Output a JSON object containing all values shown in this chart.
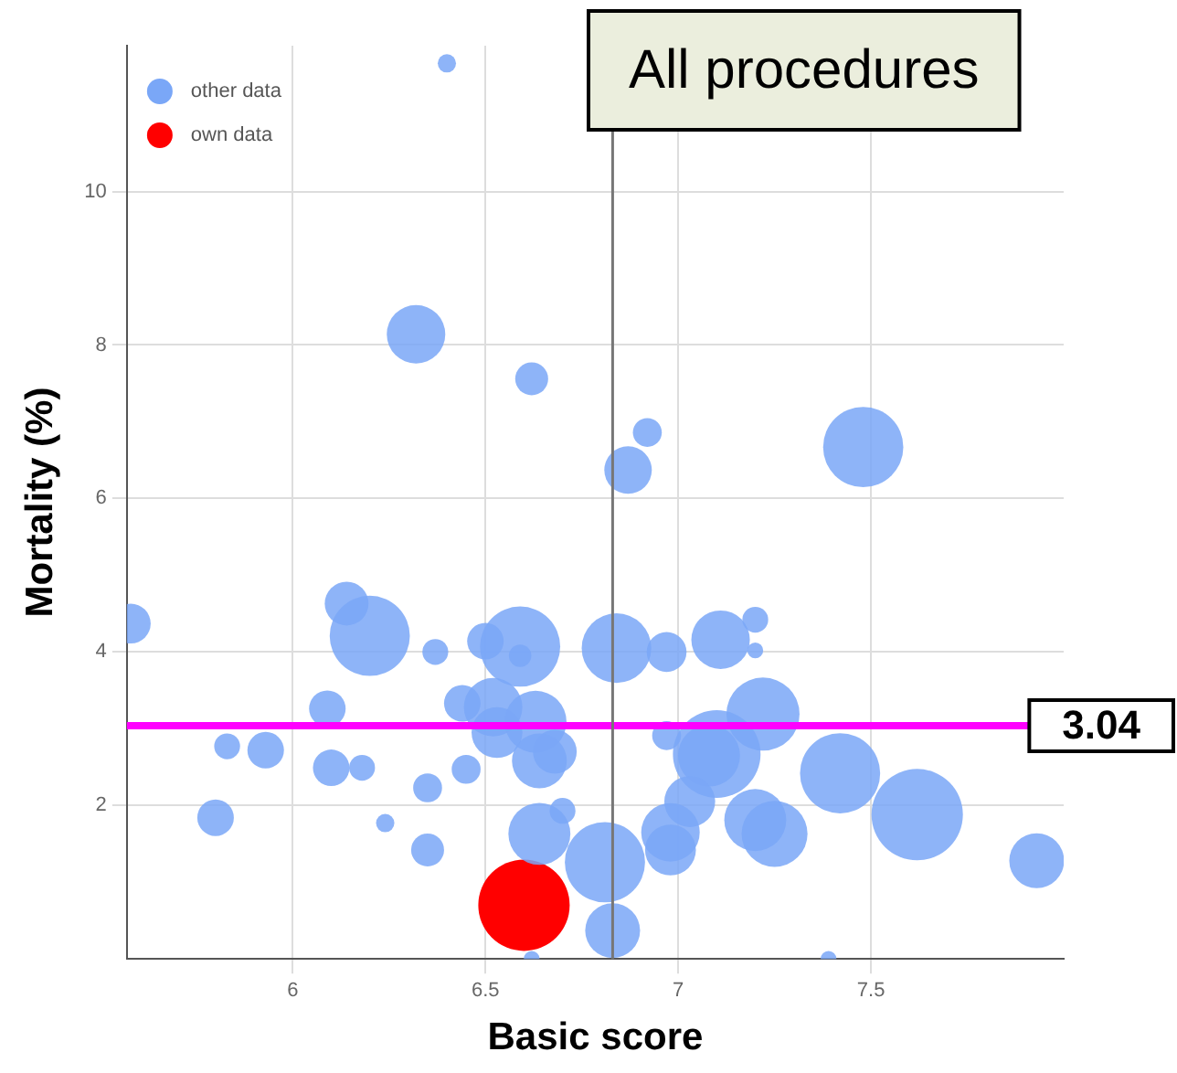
{
  "chart_data": {
    "type": "bubble",
    "title": "All procedures",
    "xlabel": "Basic score",
    "ylabel": "Mortality (%)",
    "xlim": [
      5.57,
      8.0
    ],
    "xticks": [
      6,
      6.5,
      7,
      7.5
    ],
    "ylim": [
      0,
      11.9
    ],
    "yticks": [
      2,
      4,
      6,
      8,
      10
    ],
    "grid": true,
    "legend": "top left",
    "marker": "circle",
    "ref_lines": [
      {
        "axis": "y",
        "value": 3.04,
        "label": "3.04",
        "color": "#ff00ff"
      },
      {
        "axis": "x",
        "value": 6.83,
        "color": "#777777"
      }
    ],
    "series": [
      {
        "name": "other data",
        "color": "#7aa7f7",
        "x": [
          6.4,
          6.32,
          6.62,
          6.92,
          6.87,
          7.48,
          5.58,
          6.14,
          6.2,
          6.37,
          6.5,
          6.59,
          6.59,
          6.84,
          6.97,
          7.11,
          7.2,
          7.2,
          6.09,
          5.83,
          5.93,
          6.1,
          6.18,
          6.44,
          6.52,
          6.53,
          6.63,
          6.68,
          6.64,
          6.45,
          6.35,
          5.8,
          6.24,
          6.35,
          6.7,
          6.64,
          6.62,
          7.22,
          6.97,
          7.1,
          7.08,
          7.42,
          7.62,
          7.03,
          7.2,
          7.25,
          6.98,
          6.98,
          6.81,
          6.83,
          7.39,
          7.93
        ],
        "values": [
          11.67,
          8.14,
          7.56,
          6.86,
          6.37,
          6.67,
          4.37,
          4.63,
          4.21,
          4.0,
          4.14,
          4.07,
          3.95,
          4.05,
          4.0,
          4.16,
          4.42,
          4.02,
          3.26,
          2.77,
          2.72,
          2.49,
          2.49,
          3.33,
          3.28,
          2.95,
          3.09,
          2.7,
          2.58,
          2.47,
          2.23,
          1.84,
          1.77,
          1.42,
          1.93,
          1.63,
          0.0,
          3.19,
          2.91,
          2.67,
          2.65,
          2.42,
          1.88,
          2.05,
          1.81,
          1.63,
          1.65,
          1.42,
          1.26,
          0.37,
          0.0,
          1.28
        ],
        "sizes": [
          0.04,
          0.41,
          0.13,
          0.1,
          0.27,
          0.77,
          0.19,
          0.23,
          0.77,
          0.08,
          0.16,
          0.77,
          0.06,
          0.58,
          0.19,
          0.41,
          0.08,
          0.03,
          0.16,
          0.08,
          0.16,
          0.16,
          0.08,
          0.16,
          0.41,
          0.31,
          0.46,
          0.23,
          0.36,
          0.1,
          0.1,
          0.16,
          0.04,
          0.13,
          0.08,
          0.46,
          0.03,
          0.64,
          0.1,
          0.92,
          0.46,
          0.77,
          1,
          0.31,
          0.46,
          0.52,
          0.41,
          0.31,
          0.77,
          0.36,
          0.03,
          0.36
        ]
      },
      {
        "name": "own data",
        "color": "#ff0000",
        "x": [
          6.6
        ],
        "values": [
          0.7
        ],
        "sizes": [
          1
        ]
      }
    ]
  }
}
